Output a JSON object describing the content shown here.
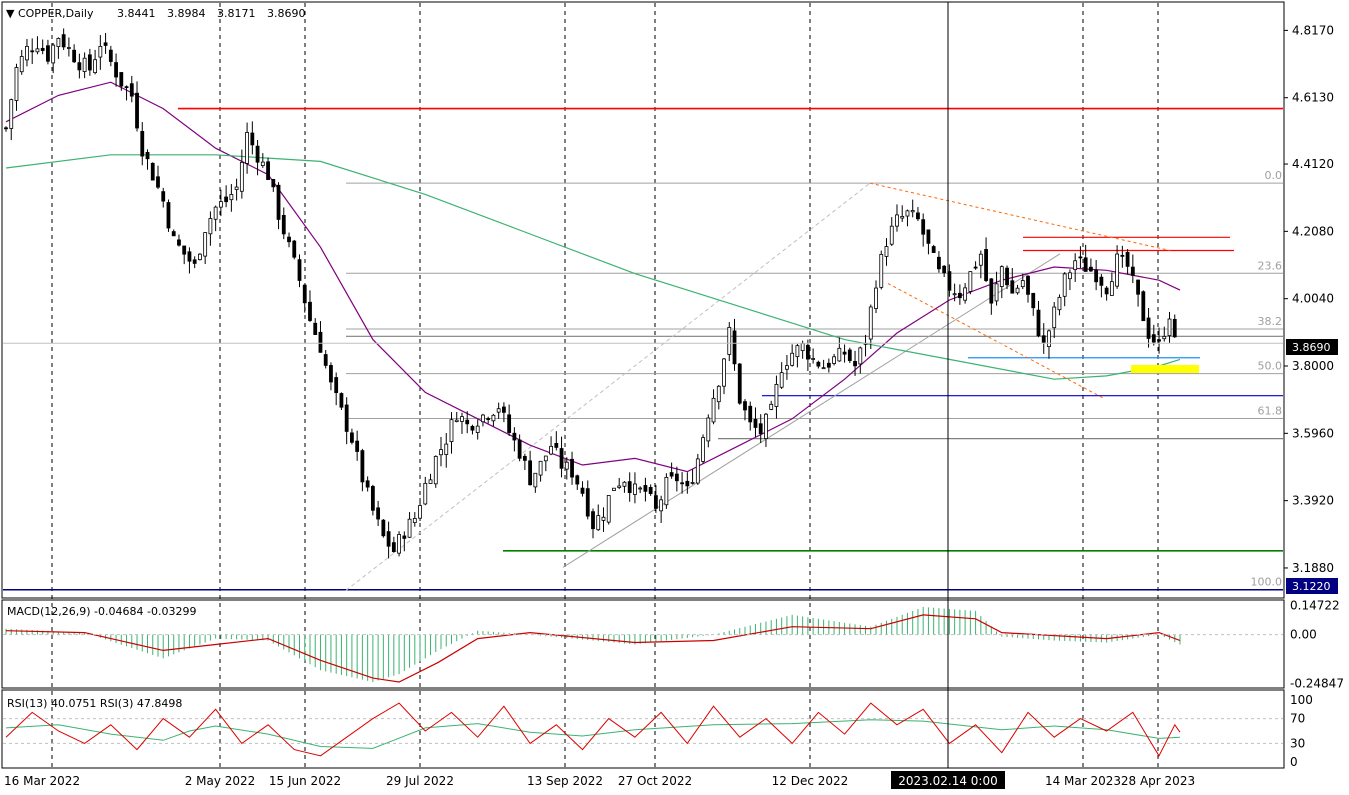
{
  "chart_data": {
    "type": "candlestick",
    "symbol": "COPPER,Daily",
    "ohlc_header": [
      "3.8441",
      "3.8984",
      "3.8171",
      "3.8690"
    ],
    "x_tick_labels": [
      "16 Mar 2022",
      "2 May 2022",
      "15 Jun 2022",
      "29 Jul 2022",
      "13 Sep 2022",
      "27 Oct 2022",
      "12 Dec 2022",
      "2023.02.14 0:00",
      "14 Mar 2023",
      "28 Apr 2023"
    ],
    "y_tick_labels": [
      "4.8170",
      "4.6130",
      "4.4120",
      "4.2080",
      "4.0040",
      "3.8000",
      "3.5960",
      "3.3920",
      "3.1880"
    ],
    "y_range": [
      3.1,
      4.9
    ],
    "current_price": {
      "label": "3.8690",
      "value": 3.869
    },
    "support_label": {
      "label": "3.1220",
      "value": 3.122
    },
    "close_path": [
      [
        0,
        4.52
      ],
      [
        4,
        4.7
      ],
      [
        8,
        4.76
      ],
      [
        12,
        4.78
      ],
      [
        16,
        4.74
      ],
      [
        20,
        4.8
      ],
      [
        24,
        4.76
      ],
      [
        28,
        4.72
      ],
      [
        32,
        4.7
      ],
      [
        36,
        4.78
      ],
      [
        40,
        4.72
      ],
      [
        44,
        4.66
      ],
      [
        48,
        4.62
      ],
      [
        52,
        4.46
      ],
      [
        56,
        4.38
      ],
      [
        60,
        4.3
      ],
      [
        64,
        4.18
      ],
      [
        68,
        4.14
      ],
      [
        72,
        4.1
      ],
      [
        76,
        4.22
      ],
      [
        80,
        4.28
      ],
      [
        84,
        4.3
      ],
      [
        88,
        4.34
      ],
      [
        92,
        4.5
      ],
      [
        96,
        4.44
      ],
      [
        100,
        4.38
      ],
      [
        104,
        4.26
      ],
      [
        108,
        4.16
      ],
      [
        112,
        4.06
      ],
      [
        116,
        3.94
      ],
      [
        120,
        3.86
      ],
      [
        124,
        3.74
      ],
      [
        128,
        3.66
      ],
      [
        132,
        3.58
      ],
      [
        136,
        3.46
      ],
      [
        140,
        3.36
      ],
      [
        144,
        3.28
      ],
      [
        148,
        3.24
      ],
      [
        152,
        3.3
      ],
      [
        156,
        3.34
      ],
      [
        160,
        3.44
      ],
      [
        164,
        3.52
      ],
      [
        168,
        3.58
      ],
      [
        172,
        3.66
      ],
      [
        176,
        3.62
      ],
      [
        180,
        3.64
      ],
      [
        184,
        3.66
      ],
      [
        188,
        3.68
      ],
      [
        192,
        3.6
      ],
      [
        196,
        3.54
      ],
      [
        200,
        3.46
      ],
      [
        204,
        3.5
      ],
      [
        208,
        3.56
      ],
      [
        212,
        3.5
      ],
      [
        216,
        3.48
      ],
      [
        220,
        3.42
      ],
      [
        224,
        3.32
      ],
      [
        228,
        3.36
      ],
      [
        232,
        3.44
      ],
      [
        236,
        3.46
      ],
      [
        240,
        3.42
      ],
      [
        244,
        3.42
      ],
      [
        248,
        3.36
      ],
      [
        252,
        3.44
      ],
      [
        256,
        3.46
      ],
      [
        260,
        3.42
      ],
      [
        264,
        3.52
      ],
      [
        268,
        3.66
      ],
      [
        272,
        3.76
      ],
      [
        276,
        3.9
      ],
      [
        280,
        3.7
      ],
      [
        284,
        3.62
      ],
      [
        288,
        3.6
      ],
      [
        292,
        3.66
      ],
      [
        296,
        3.8
      ],
      [
        300,
        3.84
      ],
      [
        304,
        3.86
      ],
      [
        308,
        3.82
      ],
      [
        312,
        3.8
      ],
      [
        316,
        3.82
      ],
      [
        320,
        3.84
      ],
      [
        324,
        3.8
      ],
      [
        328,
        3.88
      ],
      [
        332,
        4.06
      ],
      [
        336,
        4.18
      ],
      [
        340,
        4.24
      ],
      [
        344,
        4.26
      ],
      [
        348,
        4.24
      ],
      [
        352,
        4.16
      ],
      [
        356,
        4.08
      ],
      [
        360,
        4.04
      ],
      [
        364,
        4.02
      ],
      [
        368,
        4.08
      ],
      [
        372,
        4.14
      ],
      [
        376,
        3.98
      ],
      [
        380,
        4.1
      ],
      [
        384,
        4.02
      ],
      [
        388,
        4.06
      ],
      [
        392,
        3.96
      ],
      [
        396,
        3.86
      ],
      [
        400,
        3.96
      ],
      [
        404,
        4.06
      ],
      [
        408,
        4.12
      ],
      [
        412,
        4.1
      ],
      [
        416,
        4.08
      ],
      [
        420,
        4.04
      ],
      [
        424,
        4.12
      ],
      [
        428,
        4.1
      ],
      [
        432,
        4.0
      ],
      [
        436,
        3.9
      ],
      [
        440,
        3.86
      ],
      [
        444,
        3.96
      ],
      [
        446,
        3.869
      ]
    ],
    "moving_averages": [
      {
        "color": "#800080",
        "values": [
          [
            0,
            4.54
          ],
          [
            20,
            4.62
          ],
          [
            40,
            4.66
          ],
          [
            60,
            4.58
          ],
          [
            80,
            4.46
          ],
          [
            100,
            4.38
          ],
          [
            120,
            4.16
          ],
          [
            140,
            3.88
          ],
          [
            160,
            3.72
          ],
          [
            180,
            3.64
          ],
          [
            200,
            3.56
          ],
          [
            220,
            3.5
          ],
          [
            240,
            3.52
          ],
          [
            260,
            3.48
          ],
          [
            280,
            3.56
          ],
          [
            300,
            3.64
          ],
          [
            320,
            3.76
          ],
          [
            340,
            3.9
          ],
          [
            360,
            4.0
          ],
          [
            380,
            4.06
          ],
          [
            400,
            4.1
          ],
          [
            420,
            4.09
          ],
          [
            440,
            4.06
          ],
          [
            448,
            4.03
          ]
        ]
      },
      {
        "color": "#3cb371",
        "values": [
          [
            0,
            4.4
          ],
          [
            40,
            4.44
          ],
          [
            80,
            4.44
          ],
          [
            120,
            4.42
          ],
          [
            160,
            4.32
          ],
          [
            200,
            4.2
          ],
          [
            240,
            4.08
          ],
          [
            280,
            3.98
          ],
          [
            320,
            3.88
          ],
          [
            360,
            3.82
          ],
          [
            400,
            3.76
          ],
          [
            420,
            3.77
          ],
          [
            440,
            3.8
          ],
          [
            448,
            3.82
          ]
        ]
      }
    ],
    "fibonacci_levels": [
      {
        "label": "0.0",
        "value": 4.354
      },
      {
        "label": "23.6",
        "value": 4.081
      },
      {
        "label": "38.2",
        "value": 3.912
      },
      {
        "label": "50.0",
        "value": 3.777
      },
      {
        "label": "61.8",
        "value": 3.641
      },
      {
        "label": "100.0",
        "value": 3.122
      }
    ],
    "horizontal_lines": [
      {
        "color": "#ff0000",
        "value": 4.58
      },
      {
        "color": "#008000",
        "value": 3.24
      },
      {
        "color": "#000080",
        "value": 3.122
      },
      {
        "color": "#1e90ff",
        "value": 3.825
      },
      {
        "color": "#0000cd",
        "value": 3.71
      },
      {
        "color": "#ff0000",
        "value": 4.19
      },
      {
        "color": "#ff0000",
        "value": 4.15
      },
      {
        "color": "#808080",
        "value": 3.89
      },
      {
        "color": "#808080",
        "value": 3.58
      }
    ],
    "macd": {
      "label": "MACD(12,26,9) -0.04684 -0.03299",
      "y_tick_labels": [
        "0.14722",
        "0.00",
        "-0.24847"
      ],
      "y_range": [
        -0.26,
        0.16
      ],
      "signal_path": [
        [
          0,
          0.02
        ],
        [
          30,
          0.01
        ],
        [
          60,
          -0.08
        ],
        [
          80,
          -0.05
        ],
        [
          100,
          -0.02
        ],
        [
          120,
          -0.13
        ],
        [
          140,
          -0.22
        ],
        [
          150,
          -0.24
        ],
        [
          165,
          -0.14
        ],
        [
          180,
          -0.02
        ],
        [
          200,
          0.01
        ],
        [
          240,
          -0.04
        ],
        [
          270,
          -0.03
        ],
        [
          300,
          0.04
        ],
        [
          330,
          0.03
        ],
        [
          350,
          0.1
        ],
        [
          370,
          0.08
        ],
        [
          380,
          0.01
        ],
        [
          420,
          -0.02
        ],
        [
          440,
          0.01
        ],
        [
          448,
          -0.03
        ]
      ],
      "histogram_path": [
        [
          0,
          0.03
        ],
        [
          30,
          0.01
        ],
        [
          60,
          -0.12
        ],
        [
          80,
          -0.02
        ],
        [
          100,
          -0.03
        ],
        [
          120,
          -0.18
        ],
        [
          140,
          -0.24
        ],
        [
          150,
          -0.2
        ],
        [
          165,
          -0.08
        ],
        [
          180,
          0.02
        ],
        [
          200,
          0.0
        ],
        [
          240,
          -0.05
        ],
        [
          270,
          0.0
        ],
        [
          300,
          0.1
        ],
        [
          330,
          0.04
        ],
        [
          350,
          0.14
        ],
        [
          370,
          0.12
        ],
        [
          380,
          -0.01
        ],
        [
          400,
          -0.03
        ],
        [
          420,
          -0.04
        ],
        [
          440,
          0.0
        ],
        [
          448,
          -0.05
        ]
      ]
    },
    "rsi": {
      "label": "RSI(13) 40.0751  RSI(3) 47.8498",
      "y_tick_labels": [
        "100",
        "70",
        "30",
        "0"
      ],
      "y_range": [
        0,
        100
      ],
      "rsi13_path": [
        [
          0,
          55
        ],
        [
          20,
          60
        ],
        [
          40,
          45
        ],
        [
          60,
          35
        ],
        [
          70,
          50
        ],
        [
          80,
          58
        ],
        [
          100,
          45
        ],
        [
          120,
          25
        ],
        [
          140,
          22
        ],
        [
          160,
          55
        ],
        [
          180,
          62
        ],
        [
          200,
          48
        ],
        [
          220,
          42
        ],
        [
          240,
          52
        ],
        [
          270,
          60
        ],
        [
          300,
          62
        ],
        [
          330,
          68
        ],
        [
          350,
          66
        ],
        [
          380,
          52
        ],
        [
          400,
          58
        ],
        [
          420,
          52
        ],
        [
          440,
          38
        ],
        [
          448,
          40
        ]
      ],
      "rsi3_path": [
        [
          0,
          40
        ],
        [
          10,
          80
        ],
        [
          20,
          50
        ],
        [
          30,
          30
        ],
        [
          40,
          60
        ],
        [
          50,
          20
        ],
        [
          60,
          70
        ],
        [
          70,
          40
        ],
        [
          80,
          85
        ],
        [
          90,
          30
        ],
        [
          100,
          60
        ],
        [
          110,
          20
        ],
        [
          120,
          10
        ],
        [
          130,
          40
        ],
        [
          140,
          70
        ],
        [
          150,
          95
        ],
        [
          160,
          50
        ],
        [
          170,
          80
        ],
        [
          180,
          40
        ],
        [
          190,
          90
        ],
        [
          200,
          30
        ],
        [
          210,
          60
        ],
        [
          220,
          20
        ],
        [
          230,
          70
        ],
        [
          240,
          40
        ],
        [
          250,
          80
        ],
        [
          260,
          30
        ],
        [
          270,
          90
        ],
        [
          280,
          40
        ],
        [
          290,
          70
        ],
        [
          300,
          30
        ],
        [
          310,
          80
        ],
        [
          320,
          45
        ],
        [
          330,
          95
        ],
        [
          340,
          60
        ],
        [
          350,
          85
        ],
        [
          360,
          30
        ],
        [
          370,
          60
        ],
        [
          380,
          15
        ],
        [
          390,
          80
        ],
        [
          400,
          40
        ],
        [
          410,
          70
        ],
        [
          420,
          50
        ],
        [
          430,
          80
        ],
        [
          440,
          10
        ],
        [
          446,
          60
        ],
        [
          448,
          48
        ]
      ]
    }
  }
}
